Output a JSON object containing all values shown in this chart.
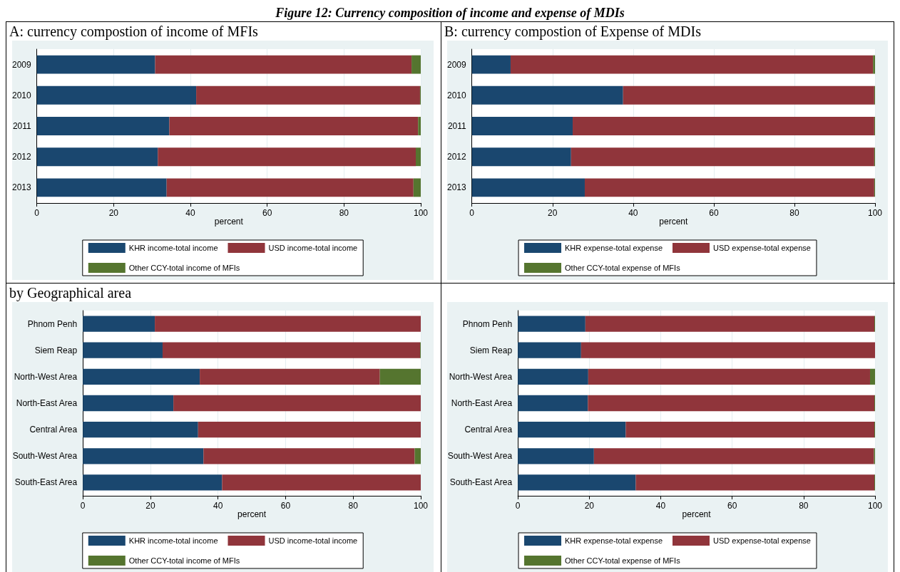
{
  "chart_data": [
    {
      "type": "bar",
      "orientation": "horizontal",
      "stacked": true,
      "title": "A: currency compostion of income of MFIs",
      "annotations": [
        "Figure 12: Currency composition of income and expense of MDIs"
      ],
      "xlabel": "percent",
      "categories": [
        "2009",
        "2010",
        "2011",
        "2012",
        "2013"
      ],
      "xlim": [
        0,
        100
      ],
      "xticks": [
        0,
        20,
        40,
        60,
        80,
        100
      ],
      "grid": "x",
      "legend": "bottom",
      "series": [
        {
          "name": "KHR income-total income",
          "color": "#1a476f",
          "values": [
            30.8,
            41.5,
            34.5,
            31.5,
            33.8
          ]
        },
        {
          "name": "USD income-total income",
          "color": "#90353b",
          "values": [
            66.8,
            58.3,
            64.8,
            67.2,
            64.3
          ]
        },
        {
          "name": "Other CCY-total income of MFIs",
          "color": "#55752f",
          "values": [
            2.4,
            0.2,
            0.7,
            1.3,
            1.9
          ]
        }
      ]
    },
    {
      "type": "bar",
      "orientation": "horizontal",
      "stacked": true,
      "title": "B: currency compostion of Expense of MDIs",
      "xlabel": "percent",
      "categories": [
        "2009",
        "2010",
        "2011",
        "2012",
        "2013"
      ],
      "xlim": [
        0,
        100
      ],
      "xticks": [
        0,
        20,
        40,
        60,
        80,
        100
      ],
      "grid": "x",
      "legend": "bottom",
      "series": [
        {
          "name": "KHR expense-total expense",
          "color": "#1a476f",
          "values": [
            9.6,
            37.5,
            25.0,
            24.6,
            28.0
          ]
        },
        {
          "name": "USD expense-total expense",
          "color": "#90353b",
          "values": [
            89.9,
            62.3,
            74.8,
            75.2,
            71.8
          ]
        },
        {
          "name": "Other CCY-total expense of MFIs",
          "color": "#55752f",
          "values": [
            0.5,
            0.2,
            0.2,
            0.2,
            0.2
          ]
        }
      ]
    },
    {
      "type": "bar",
      "orientation": "horizontal",
      "stacked": true,
      "title": "by Geographical area",
      "xlabel": "percent",
      "categories": [
        "Phnom Penh",
        "Siem Reap",
        "North-West Area",
        "North-East Area",
        "Central Area",
        "South-West Area",
        "South-East Area"
      ],
      "xlim": [
        0,
        100
      ],
      "xticks": [
        0,
        20,
        40,
        60,
        80,
        100
      ],
      "grid": "x",
      "legend": "bottom",
      "series": [
        {
          "name": "KHR income-total income",
          "color": "#1a476f",
          "values": [
            21.3,
            23.6,
            34.6,
            26.8,
            34.1,
            35.7,
            41.2
          ]
        },
        {
          "name": "USD income-total income",
          "color": "#90353b",
          "values": [
            78.7,
            76.2,
            53.3,
            73.2,
            65.9,
            62.5,
            58.8
          ]
        },
        {
          "name": "Other CCY-total income of MFIs",
          "color": "#55752f",
          "values": [
            0,
            0.2,
            12.1,
            0,
            0,
            1.8,
            0
          ]
        }
      ]
    },
    {
      "type": "bar",
      "orientation": "horizontal",
      "stacked": true,
      "xlabel": "percent",
      "categories": [
        "Phnom Penh",
        "Siem Reap",
        "North-West Area",
        "North-East Area",
        "Central Area",
        "South-West Area",
        "South-East Area"
      ],
      "xlim": [
        0,
        100
      ],
      "xticks": [
        0,
        20,
        40,
        60,
        80,
        100
      ],
      "grid": "x",
      "legend": "bottom",
      "series": [
        {
          "name": "KHR expense-total expense",
          "color": "#1a476f",
          "values": [
            18.9,
            17.7,
            19.7,
            19.6,
            30.2,
            21.3,
            33.0
          ]
        },
        {
          "name": "USD expense-total expense",
          "color": "#90353b",
          "values": [
            80.9,
            82.3,
            78.9,
            80.2,
            69.6,
            78.4,
            66.8
          ]
        },
        {
          "name": "Other CCY-total expense of MFIs",
          "color": "#55752f",
          "values": [
            0.2,
            0,
            1.4,
            0.2,
            0.2,
            0.3,
            0.2
          ]
        }
      ]
    }
  ]
}
